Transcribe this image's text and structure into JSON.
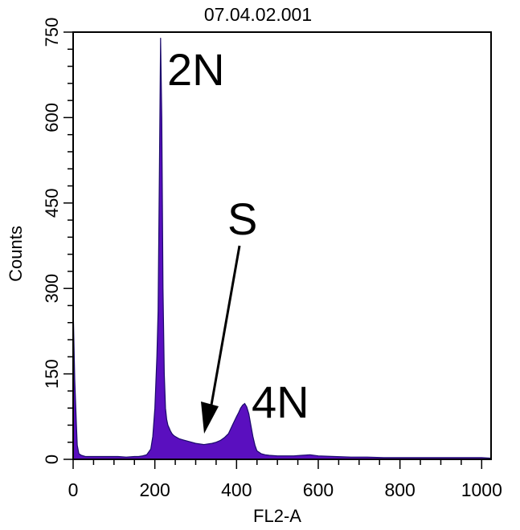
{
  "chart_data": {
    "type": "area",
    "title": "07.04.02.001",
    "xlabel": "FL2-A",
    "ylabel": "Counts",
    "xlim": [
      0,
      1023
    ],
    "ylim": [
      0,
      750
    ],
    "x_ticks": [
      "0",
      "200",
      "400",
      "600",
      "800",
      "1000"
    ],
    "y_ticks": [
      "0",
      "150",
      "300",
      "450",
      "600",
      "750"
    ],
    "grid": false,
    "fill_color": "#5a0fbf",
    "series": [
      {
        "x": [
          0,
          4,
          8,
          10,
          14,
          20,
          30,
          50,
          70,
          90,
          110,
          130,
          150,
          160,
          170,
          180,
          190,
          195,
          200,
          205,
          208,
          211,
          214,
          217,
          220,
          223,
          226,
          229,
          232,
          235,
          238,
          242,
          246,
          250,
          260,
          270,
          280,
          290,
          300,
          310,
          320,
          330,
          340,
          350,
          360,
          370,
          380,
          390,
          400,
          405,
          410,
          415,
          420,
          425,
          430,
          435,
          440,
          445,
          450,
          460,
          470,
          480,
          500,
          540,
          560,
          580,
          600,
          640,
          680,
          720,
          760,
          800,
          850,
          900,
          950,
          1000,
          1023
        ],
        "y": [
          270,
          140,
          60,
          25,
          10,
          7,
          5,
          5,
          5,
          5,
          5,
          4,
          5,
          5,
          6,
          8,
          18,
          40,
          90,
          180,
          260,
          500,
          740,
          600,
          300,
          150,
          90,
          70,
          60,
          55,
          50,
          45,
          42,
          40,
          36,
          34,
          32,
          30,
          28,
          27,
          26,
          27,
          28,
          30,
          33,
          38,
          45,
          60,
          75,
          82,
          90,
          95,
          98,
          92,
          80,
          60,
          40,
          25,
          15,
          10,
          8,
          7,
          6,
          6,
          7,
          8,
          6,
          5,
          4,
          4,
          3,
          3,
          3,
          3,
          3,
          3,
          2
        ]
      }
    ],
    "annotations": [
      {
        "text": "2N"
      },
      {
        "text": "S"
      },
      {
        "text": "4N"
      }
    ]
  }
}
